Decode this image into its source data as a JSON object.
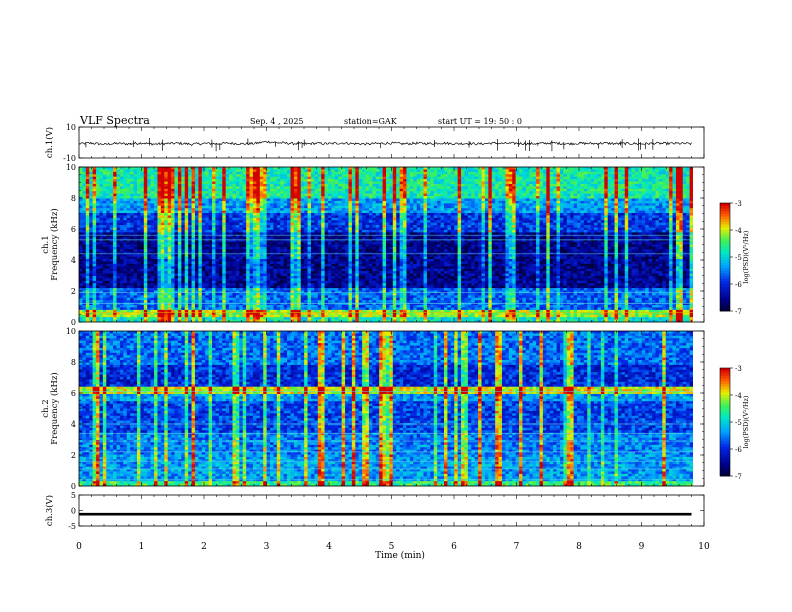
{
  "header": {
    "title": "VLF  Spectra",
    "date": "Sep. 4  , 2025",
    "station": "station=GAK",
    "start": "start  UT =    19: 50 : 0"
  },
  "chart_data": [
    {
      "type": "line",
      "ylabel": "ch.1(V)",
      "ylim": [
        -10,
        10
      ],
      "yticks": [
        "10",
        "-10"
      ],
      "x": [
        0,
        0.2,
        0.4,
        0.6,
        0.8,
        1.0,
        1.2,
        1.4,
        1.6,
        1.8,
        2.0,
        2.2,
        2.4,
        2.6,
        2.8,
        3.0,
        3.2,
        3.4,
        3.6,
        3.8,
        4.0,
        4.2,
        4.4,
        4.6,
        4.8,
        5.0,
        5.2,
        5.4,
        5.6,
        5.8,
        6.0,
        6.2,
        6.4,
        6.6,
        6.8,
        7.0,
        7.2,
        7.4,
        7.6,
        7.8,
        8.0,
        8.2,
        8.4,
        8.6,
        8.8,
        9.0,
        9.2,
        9.4,
        9.6,
        9.8
      ],
      "values": [
        -0.8,
        -0.4,
        -1.2,
        -0.6,
        -0.9,
        -0.3,
        -1.0,
        -0.7,
        -0.5,
        -1.1,
        -0.6,
        -0.8,
        -0.4,
        -0.9,
        -0.7,
        0.6,
        -0.2,
        -0.6,
        -0.9,
        -0.5,
        -0.8,
        -0.3,
        -0.7,
        -1.0,
        -0.6,
        -0.4,
        -0.9,
        -0.5,
        -0.7,
        -0.3,
        -0.8,
        -0.6,
        -0.9,
        -0.4,
        -0.7,
        -0.5,
        -0.8,
        -0.6,
        -0.3,
        -0.9,
        -0.5,
        -0.7,
        -0.4,
        -0.8,
        -0.6,
        -0.9,
        -0.5,
        -0.7,
        -0.6,
        -0.8
      ]
    },
    {
      "type": "heatmap",
      "ylabel": "ch.1\nFrequency  (kHz)",
      "ylim": [
        0,
        10
      ],
      "yticks": [
        "0",
        "2",
        "4",
        "6",
        "8",
        "10"
      ],
      "colorbar": {
        "label": "log(PSD)(V²/Hz)",
        "min": -7,
        "max": -3,
        "ticks": [
          "-3",
          "-4",
          "-5",
          "-6",
          "-7"
        ]
      }
    },
    {
      "type": "heatmap",
      "ylabel": "ch.2\nFrequency  (kHz)",
      "ylim": [
        0,
        10
      ],
      "yticks": [
        "0",
        "2",
        "4",
        "6",
        "8",
        "10"
      ],
      "colorbar": {
        "label": "log(PSD)(V²/Hz)",
        "min": -7,
        "max": -3,
        "ticks": [
          "-3",
          "-4",
          "-5",
          "-6",
          "-7"
        ]
      }
    },
    {
      "type": "line",
      "ylabel": "ch.3(V)",
      "ylim": [
        -5,
        5
      ],
      "yticks": [
        "5",
        "0",
        "-5"
      ],
      "x": [
        0,
        9.8
      ],
      "values": [
        -1.2,
        -1.2
      ]
    }
  ],
  "xaxis": {
    "label": "Time  (min)",
    "ticks": [
      "0",
      "1",
      "2",
      "3",
      "4",
      "5",
      "6",
      "7",
      "8",
      "9",
      "10"
    ],
    "range": [
      0,
      10
    ]
  }
}
